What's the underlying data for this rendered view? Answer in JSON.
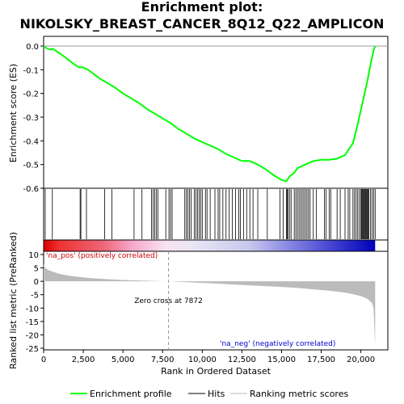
{
  "chart_data": {
    "type": "line",
    "title_lines": [
      "Enrichment plot:",
      "NIKOLSKY_BREAST_CANCER_8Q12_Q22_AMPLICON"
    ],
    "es_panel": {
      "ylabel": "Enrichment score (ES)",
      "ylim": [
        -0.6,
        0.0
      ],
      "yticks": [
        "0.0",
        "-0.1",
        "-0.2",
        "-0.3",
        "-0.4",
        "-0.5",
        "-0.6"
      ],
      "ytick_values": [
        0.0,
        -0.1,
        -0.2,
        -0.3,
        -0.4,
        -0.5,
        -0.6
      ],
      "line_color": "#00ff00",
      "profile": [
        [
          0,
          0.0
        ],
        [
          200,
          -0.01
        ],
        [
          450,
          -0.015
        ],
        [
          600,
          -0.012
        ],
        [
          1000,
          -0.03
        ],
        [
          1500,
          -0.055
        ],
        [
          2000,
          -0.08
        ],
        [
          2250,
          -0.09
        ],
        [
          2500,
          -0.09
        ],
        [
          2800,
          -0.1
        ],
        [
          3200,
          -0.12
        ],
        [
          3600,
          -0.14
        ],
        [
          4000,
          -0.155
        ],
        [
          4500,
          -0.175
        ],
        [
          5000,
          -0.2
        ],
        [
          5500,
          -0.22
        ],
        [
          6000,
          -0.24
        ],
        [
          6500,
          -0.265
        ],
        [
          7000,
          -0.285
        ],
        [
          7500,
          -0.305
        ],
        [
          8000,
          -0.325
        ],
        [
          8500,
          -0.35
        ],
        [
          9000,
          -0.37
        ],
        [
          9500,
          -0.39
        ],
        [
          10000,
          -0.405
        ],
        [
          10500,
          -0.42
        ],
        [
          11000,
          -0.435
        ],
        [
          11500,
          -0.455
        ],
        [
          12000,
          -0.47
        ],
        [
          12500,
          -0.485
        ],
        [
          13000,
          -0.485
        ],
        [
          13500,
          -0.5
        ],
        [
          14000,
          -0.52
        ],
        [
          14500,
          -0.545
        ],
        [
          15000,
          -0.565
        ],
        [
          15300,
          -0.57
        ],
        [
          15500,
          -0.55
        ],
        [
          15800,
          -0.535
        ],
        [
          16000,
          -0.515
        ],
        [
          16500,
          -0.5
        ],
        [
          17000,
          -0.485
        ],
        [
          17500,
          -0.48
        ],
        [
          18000,
          -0.48
        ],
        [
          18500,
          -0.475
        ],
        [
          19000,
          -0.46
        ],
        [
          19300,
          -0.43
        ],
        [
          19500,
          -0.41
        ],
        [
          19800,
          -0.33
        ],
        [
          20000,
          -0.27
        ],
        [
          20200,
          -0.21
        ],
        [
          20400,
          -0.15
        ],
        [
          20600,
          -0.08
        ],
        [
          20800,
          -0.02
        ],
        [
          20900,
          0.0
        ]
      ]
    },
    "hits_panel": {
      "hit_positions": [
        100,
        550,
        2300,
        2350,
        2700,
        3850,
        4300,
        5700,
        6200,
        6800,
        6900,
        7000,
        7100,
        7200,
        7700,
        7900,
        8000,
        8100,
        8900,
        9000,
        9100,
        9200,
        9300,
        9500,
        9600,
        9700,
        9800,
        9900,
        10000,
        10200,
        10300,
        10500,
        10800,
        11000,
        11100,
        11300,
        11500,
        11700,
        11900,
        12100,
        12300,
        12400,
        12600,
        12800,
        13000,
        13200,
        13500,
        14100,
        14900,
        15100,
        15300,
        15350,
        15400,
        15500,
        15600,
        15800,
        15900,
        16000,
        16100,
        16200,
        16300,
        16400,
        16500,
        16600,
        16700,
        16800,
        17000,
        17200,
        17700,
        17800,
        18000,
        18100,
        18500,
        18700,
        19000,
        19200,
        19300,
        19500,
        19600,
        19700,
        19800,
        19900,
        20000,
        20050,
        20100,
        20150,
        20200,
        20250,
        20300,
        20350,
        20400,
        20450,
        20500,
        20600,
        20700,
        20800,
        20900
      ]
    },
    "rank_panel": {
      "ylabel": "Ranked list metric (PreRanked)",
      "ylim": [
        -25,
        10
      ],
      "yticks": [
        "10",
        "5",
        "0",
        "-5",
        "-10",
        "-15",
        "-20",
        "-25"
      ],
      "ytick_values": [
        10,
        5,
        0,
        -5,
        -10,
        -15,
        -20,
        -25
      ],
      "metric_profile": [
        [
          0,
          6.5
        ],
        [
          100,
          5.0
        ],
        [
          300,
          4.2
        ],
        [
          600,
          3.5
        ],
        [
          1000,
          2.8
        ],
        [
          1500,
          2.2
        ],
        [
          2000,
          1.8
        ],
        [
          3000,
          1.2
        ],
        [
          4000,
          0.8
        ],
        [
          5000,
          0.5
        ],
        [
          6000,
          0.3
        ],
        [
          7000,
          0.1
        ],
        [
          7872,
          0.0
        ],
        [
          9000,
          -0.3
        ],
        [
          10000,
          -0.6
        ],
        [
          11000,
          -0.9
        ],
        [
          12000,
          -1.2
        ],
        [
          13000,
          -1.5
        ],
        [
          14000,
          -1.8
        ],
        [
          15000,
          -2.1
        ],
        [
          16000,
          -2.5
        ],
        [
          17000,
          -3.0
        ],
        [
          18000,
          -3.5
        ],
        [
          19000,
          -4.2
        ],
        [
          19500,
          -4.8
        ],
        [
          20000,
          -5.5
        ],
        [
          20400,
          -6.5
        ],
        [
          20700,
          -8.0
        ],
        [
          20800,
          -10.0
        ],
        [
          20900,
          -24.0
        ]
      ],
      "zero_cross_label": "Zero cross at 7872",
      "zero_cross": 7872,
      "pos_label": "'na_pos' (positively correlated)",
      "neg_label": "'na_neg' (negatively correlated)",
      "pos_color": "#cc0000",
      "neg_color": "#0000cc"
    },
    "xlabel": "Rank in Ordered Dataset",
    "xlim": [
      0,
      21700
    ],
    "xticks": [
      "0",
      "2,500",
      "5,000",
      "7,500",
      "10,000",
      "12,500",
      "15,000",
      "17,500",
      "20,000"
    ],
    "xtick_values": [
      0,
      2500,
      5000,
      7500,
      10000,
      12500,
      15000,
      17500,
      20000
    ],
    "total": 20900,
    "legend": [
      {
        "label": "Enrichment profile",
        "color": "#00ff00"
      },
      {
        "label": "Hits",
        "color": "#000000"
      },
      {
        "label": "Ranking metric scores",
        "color": "#bbbbbb"
      }
    ]
  }
}
